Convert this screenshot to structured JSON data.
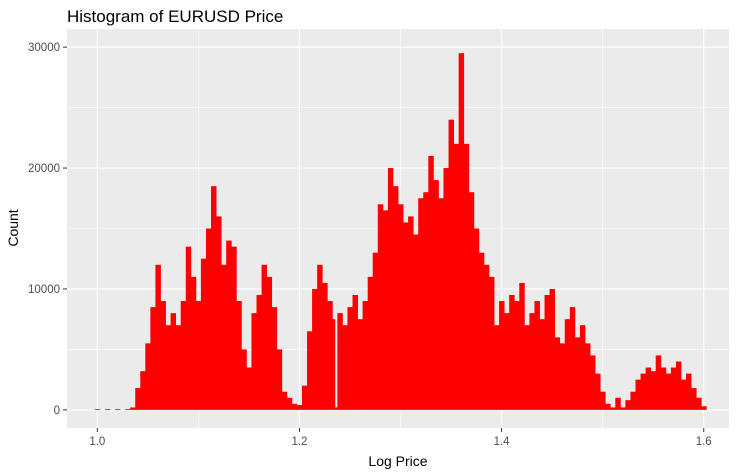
{
  "chart_data": {
    "type": "bar",
    "title": "Histogram of EURUSD Price",
    "xlabel": "Log Price",
    "ylabel": "Count",
    "xlim": [
      0.97,
      1.625
    ],
    "ylim": [
      -1500,
      31500
    ],
    "x_ticks": [
      1.0,
      1.2,
      1.4,
      1.6
    ],
    "x_tick_labels": [
      "1.0",
      "1.2",
      "1.4",
      "1.6"
    ],
    "y_ticks": [
      0,
      10000,
      20000,
      30000
    ],
    "y_tick_labels": [
      "0",
      "10000",
      "20000",
      "30000"
    ],
    "grid": true,
    "legend": "none",
    "bar_color": "#FF0000",
    "panel_background": "#EBEBEB",
    "gridline_color": "#FFFFFF",
    "series": [
      {
        "x": [
          1.0,
          1.01,
          1.02,
          1.03,
          1.035,
          1.04,
          1.045,
          1.05,
          1.055,
          1.06,
          1.065,
          1.07,
          1.075,
          1.08,
          1.085,
          1.09,
          1.095,
          1.1,
          1.105,
          1.11,
          1.115,
          1.12,
          1.125,
          1.13,
          1.135,
          1.14,
          1.145,
          1.15,
          1.155,
          1.16,
          1.165,
          1.17,
          1.175,
          1.18,
          1.185,
          1.19,
          1.195,
          1.2,
          1.205,
          1.21,
          1.215,
          1.22,
          1.225,
          1.23,
          1.235,
          1.2375,
          1.24,
          1.245,
          1.25,
          1.255,
          1.26,
          1.265,
          1.27,
          1.275,
          1.28,
          1.285,
          1.29,
          1.295,
          1.3,
          1.305,
          1.31,
          1.315,
          1.32,
          1.325,
          1.33,
          1.335,
          1.34,
          1.345,
          1.35,
          1.355,
          1.36,
          1.365,
          1.37,
          1.375,
          1.38,
          1.385,
          1.39,
          1.395,
          1.4,
          1.405,
          1.41,
          1.415,
          1.42,
          1.425,
          1.43,
          1.435,
          1.44,
          1.445,
          1.45,
          1.455,
          1.46,
          1.465,
          1.47,
          1.475,
          1.48,
          1.485,
          1.49,
          1.495,
          1.5,
          1.505,
          1.51,
          1.515,
          1.52,
          1.525,
          1.53,
          1.535,
          1.54,
          1.545,
          1.55,
          1.555,
          1.56,
          1.565,
          1.57,
          1.575,
          1.58,
          1.585,
          1.59,
          1.595,
          1.6
        ],
        "values": [
          0,
          0,
          0,
          0,
          200,
          1800,
          3200,
          5500,
          8500,
          12000,
          9000,
          7000,
          8000,
          7000,
          9000,
          13500,
          11000,
          9000,
          12500,
          15000,
          18500,
          16000,
          12000,
          14000,
          13500,
          9000,
          5000,
          3500,
          8000,
          9500,
          12000,
          11000,
          8500,
          5000,
          1500,
          1000,
          500,
          400,
          2000,
          6500,
          10000,
          12000,
          10500,
          9000,
          7500,
          200,
          8000,
          7000,
          8500,
          9500,
          7500,
          9000,
          11000,
          13000,
          17000,
          16500,
          20000,
          18500,
          17000,
          15500,
          16000,
          14500,
          17500,
          18000,
          21000,
          19000,
          17500,
          20000,
          24000,
          22000,
          29500,
          22000,
          18000,
          15000,
          13000,
          12000,
          11000,
          7000,
          9000,
          8000,
          9500,
          9000,
          10500,
          7000,
          8000,
          9000,
          7500,
          9500,
          10000,
          6000,
          5500,
          7500,
          8500,
          6000,
          7000,
          5500,
          4500,
          3000,
          1500,
          500,
          200,
          1000,
          200,
          800,
          1500,
          2500,
          3000,
          3500,
          3200,
          4500,
          3500,
          3000,
          3500,
          4000,
          2500,
          3000,
          1800,
          1000,
          300
        ]
      }
    ]
  }
}
